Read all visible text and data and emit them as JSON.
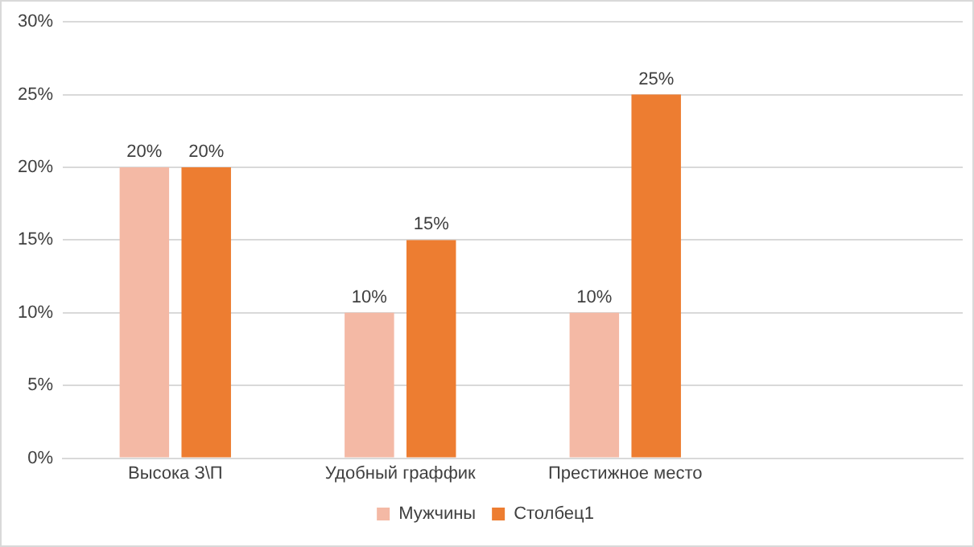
{
  "chart_data": {
    "type": "bar",
    "categories": [
      "Высока З\\П",
      "Удобный граффик",
      "Престижное место",
      null
    ],
    "series": [
      {
        "name": "Мужчины",
        "color": "#f4b9a5",
        "values": [
          20,
          10,
          10,
          null
        ],
        "value_labels": [
          "20%",
          "10%",
          "10%",
          null
        ]
      },
      {
        "name": "Столбец1",
        "color": "#ed7d31",
        "values": [
          20,
          15,
          25,
          null
        ],
        "value_labels": [
          "20%",
          "15%",
          "25%",
          null
        ]
      }
    ],
    "ylim": [
      0,
      30
    ],
    "yticks": [
      {
        "value": 0,
        "label": "0%"
      },
      {
        "value": 5,
        "label": "5%"
      },
      {
        "value": 10,
        "label": "10%"
      },
      {
        "value": 15,
        "label": "15%"
      },
      {
        "value": 20,
        "label": "20%"
      },
      {
        "value": 25,
        "label": "25%"
      },
      {
        "value": 30,
        "label": "30%"
      }
    ],
    "grid": "y",
    "legend": "bottom"
  }
}
